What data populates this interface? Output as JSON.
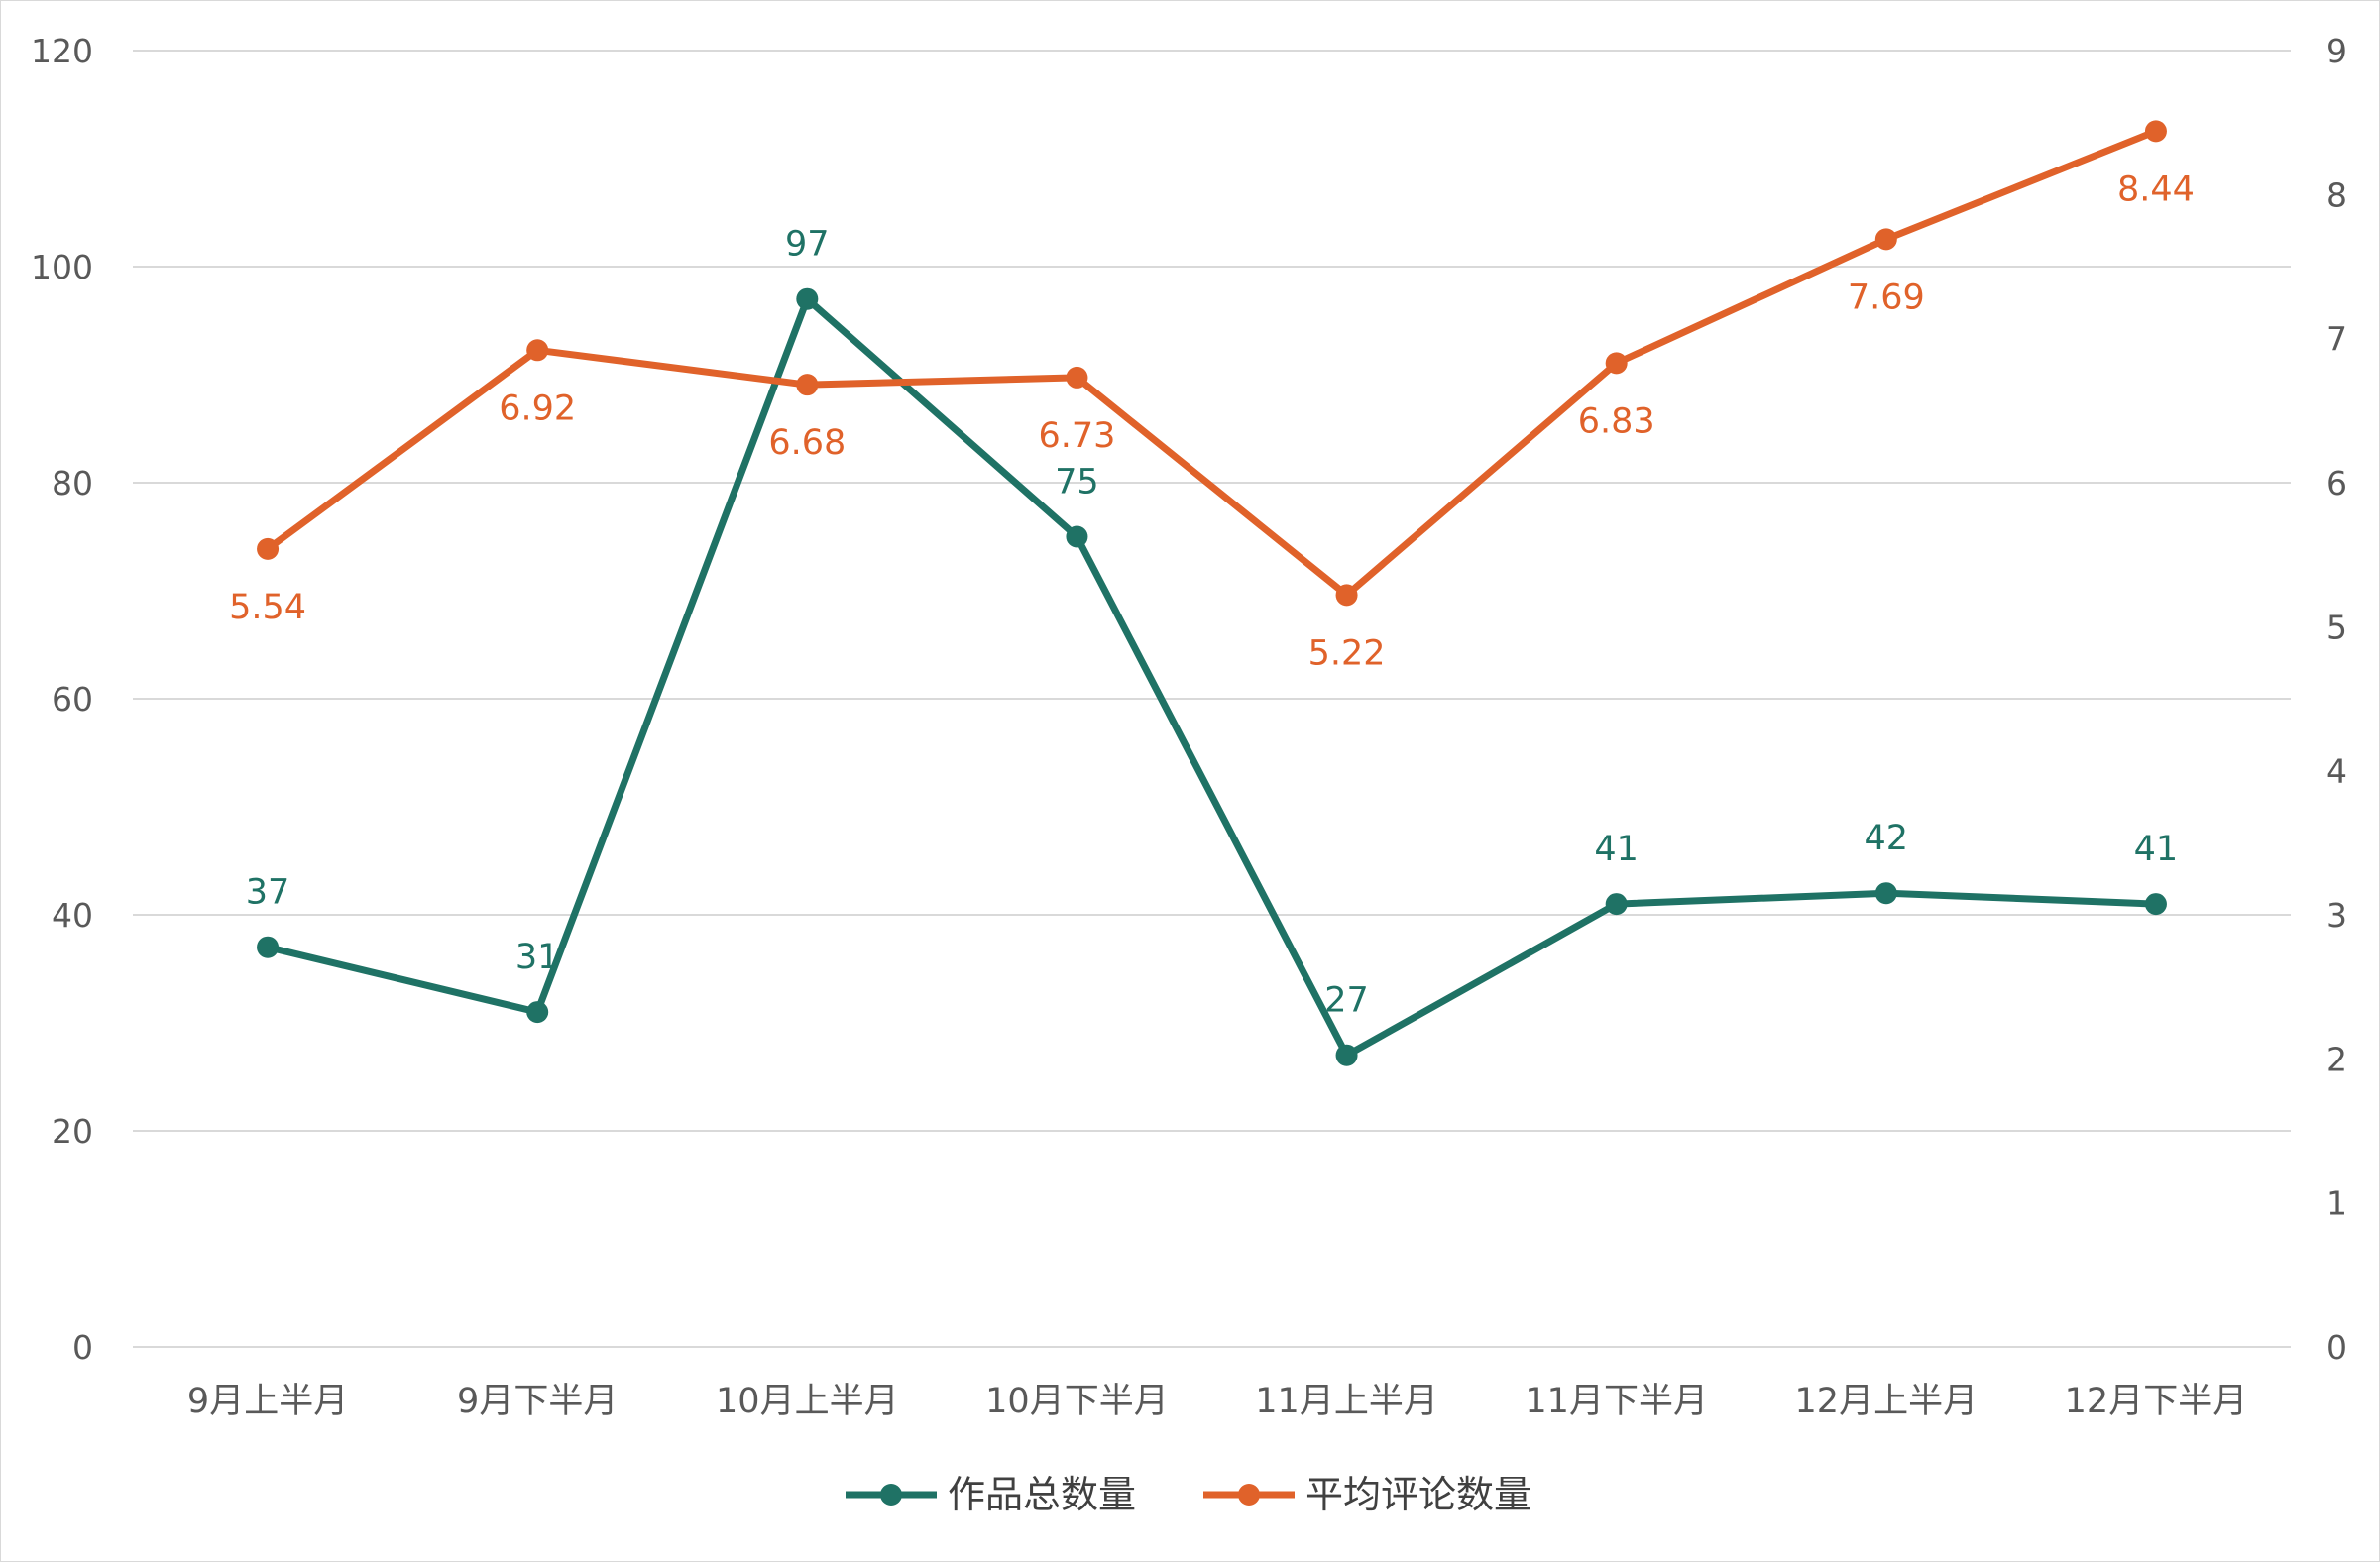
{
  "chart_data": {
    "type": "line",
    "categories": [
      "9月上半月",
      "9月下半月",
      "10月上半月",
      "10月下半月",
      "11月上半月",
      "11月下半月",
      "12月上半月",
      "12月下半月"
    ],
    "y_left": {
      "min": 0,
      "max": 120,
      "step": 20,
      "ticks": [
        "0",
        "20",
        "40",
        "60",
        "80",
        "100",
        "120"
      ]
    },
    "y_right": {
      "min": 0,
      "max": 9,
      "step": 1,
      "ticks": [
        "0",
        "1",
        "2",
        "3",
        "4",
        "5",
        "6",
        "7",
        "8",
        "9"
      ]
    },
    "grid": true,
    "legend_position": "bottom",
    "series": [
      {
        "name": "作品总数量",
        "axis": "left",
        "color": "#1f7265",
        "values": [
          37,
          31,
          97,
          75,
          27,
          41,
          42,
          41
        ],
        "labels": [
          "37",
          "31",
          "97",
          "75",
          "27",
          "41",
          "42",
          "41"
        ],
        "label_position": "above"
      },
      {
        "name": "平均评论数量",
        "axis": "right",
        "color": "#e0622a",
        "values": [
          5.54,
          6.92,
          6.68,
          6.73,
          5.22,
          6.83,
          7.69,
          8.44
        ],
        "labels": [
          "5.54",
          "6.92",
          "6.68",
          "6.73",
          "5.22",
          "6.83",
          "7.69",
          "8.44"
        ],
        "label_position": "below"
      }
    ]
  }
}
